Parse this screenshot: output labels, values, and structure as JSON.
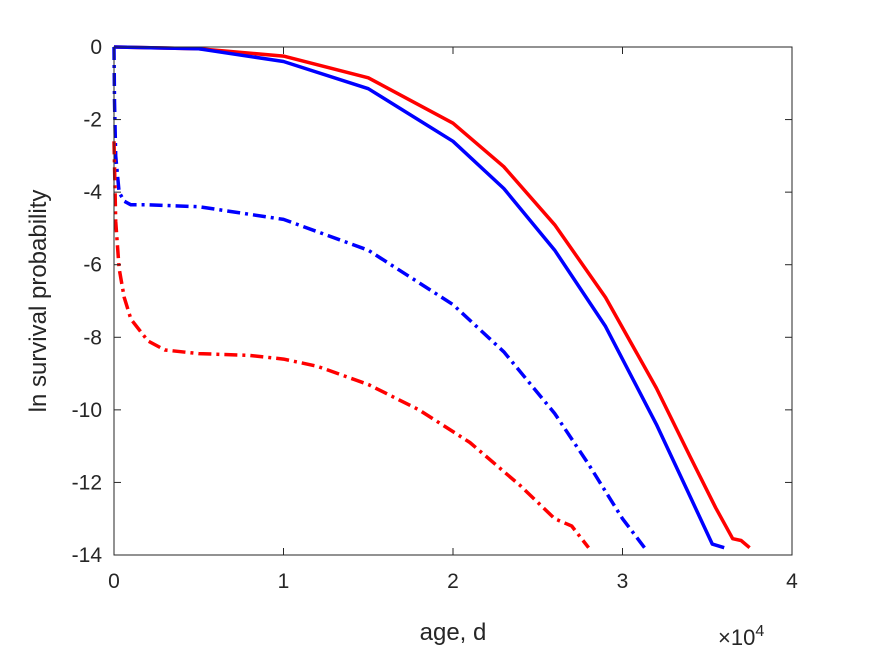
{
  "chart_data": {
    "type": "line",
    "title": "",
    "xlabel": "age, d",
    "ylabel": "ln survival probability",
    "xlim": [
      0,
      40000
    ],
    "ylim": [
      -14,
      0
    ],
    "x_ticks": [
      0,
      10000,
      20000,
      30000,
      40000
    ],
    "x_tick_labels": [
      "0",
      "1",
      "2",
      "3",
      "4"
    ],
    "x_exponent": {
      "base": "×10",
      "power": "4"
    },
    "y_ticks": [
      0,
      -2,
      -4,
      -6,
      -8,
      -10,
      -12,
      -14
    ],
    "y_tick_labels": [
      "0",
      "-2",
      "-4",
      "-6",
      "-8",
      "-10",
      "-12",
      "-14"
    ],
    "grid": false,
    "legend": "none",
    "series": [
      {
        "color": "#ff0000",
        "style": "solid",
        "x": [
          0,
          5000,
          10000,
          15000,
          20000,
          23000,
          26000,
          29000,
          32000,
          34000,
          35500,
          36500,
          37000,
          37500
        ],
        "y": [
          0,
          -0.05,
          -0.25,
          -0.85,
          -2.1,
          -3.3,
          -4.9,
          -6.9,
          -9.4,
          -11.3,
          -12.7,
          -13.55,
          -13.6,
          -13.8
        ]
      },
      {
        "color": "#0000ff",
        "style": "solid",
        "x": [
          0,
          5000,
          10000,
          15000,
          20000,
          23000,
          26000,
          29000,
          32000,
          34000,
          35300,
          36000
        ],
        "y": [
          0,
          -0.05,
          -0.4,
          -1.15,
          -2.6,
          -3.9,
          -5.6,
          -7.7,
          -10.4,
          -12.4,
          -13.7,
          -13.8
        ]
      },
      {
        "color": "#0000ff",
        "style": "dashdot",
        "x": [
          0,
          30,
          100,
          300,
          600,
          1000,
          2000,
          5000,
          10000,
          15000,
          20000,
          23000,
          26000,
          28000,
          30000,
          31300
        ],
        "y": [
          0,
          -1.5,
          -3.0,
          -4.0,
          -4.25,
          -4.35,
          -4.35,
          -4.4,
          -4.75,
          -5.6,
          -7.1,
          -8.4,
          -10.1,
          -11.5,
          -13.0,
          -13.8
        ]
      },
      {
        "color": "#ff0000",
        "style": "dashdot",
        "x": [
          0,
          100,
          300,
          600,
          1000,
          2000,
          3000,
          5000,
          8000,
          10000,
          12000,
          15000,
          18000,
          21000,
          24000,
          26000,
          27000,
          28000
        ],
        "y": [
          -2.6,
          -4.8,
          -6.1,
          -6.9,
          -7.5,
          -8.1,
          -8.35,
          -8.45,
          -8.5,
          -8.6,
          -8.8,
          -9.3,
          -10.0,
          -10.9,
          -12.1,
          -13.0,
          -13.2,
          -13.8
        ]
      }
    ]
  }
}
